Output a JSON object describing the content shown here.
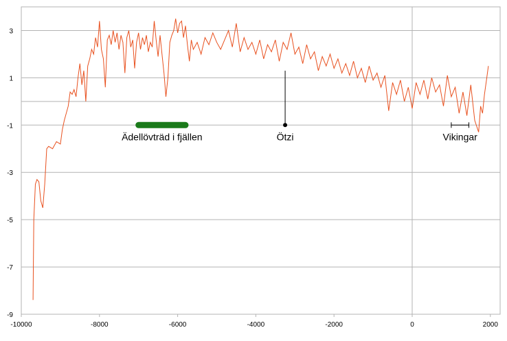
{
  "chart_data": {
    "type": "line",
    "x": [
      -9700,
      -9680,
      -9640,
      -9600,
      -9550,
      -9500,
      -9450,
      -9400,
      -9350,
      -9300,
      -9200,
      -9100,
      -9000,
      -8950,
      -8900,
      -8800,
      -8750,
      -8700,
      -8650,
      -8600,
      -8550,
      -8500,
      -8450,
      -8400,
      -8350,
      -8300,
      -8250,
      -8200,
      -8150,
      -8100,
      -8050,
      -8000,
      -7950,
      -7900,
      -7850,
      -7800,
      -7750,
      -7700,
      -7650,
      -7600,
      -7550,
      -7500,
      -7450,
      -7400,
      -7350,
      -7300,
      -7250,
      -7200,
      -7150,
      -7100,
      -7050,
      -7000,
      -6950,
      -6900,
      -6850,
      -6800,
      -6750,
      -6700,
      -6650,
      -6600,
      -6550,
      -6500,
      -6450,
      -6400,
      -6350,
      -6300,
      -6250,
      -6200,
      -6150,
      -6100,
      -6050,
      -6000,
      -5950,
      -5900,
      -5850,
      -5800,
      -5750,
      -5700,
      -5650,
      -5600,
      -5500,
      -5400,
      -5300,
      -5200,
      -5100,
      -5000,
      -4900,
      -4800,
      -4700,
      -4600,
      -4500,
      -4400,
      -4300,
      -4200,
      -4100,
      -4000,
      -3900,
      -3800,
      -3700,
      -3600,
      -3500,
      -3400,
      -3300,
      -3200,
      -3100,
      -3000,
      -2900,
      -2800,
      -2700,
      -2600,
      -2500,
      -2400,
      -2300,
      -2200,
      -2100,
      -2000,
      -1900,
      -1800,
      -1700,
      -1600,
      -1500,
      -1400,
      -1300,
      -1200,
      -1100,
      -1000,
      -900,
      -800,
      -700,
      -600,
      -500,
      -400,
      -300,
      -200,
      -100,
      0,
      100,
      200,
      300,
      400,
      500,
      600,
      700,
      800,
      900,
      1000,
      1100,
      1200,
      1300,
      1400,
      1500,
      1600,
      1700,
      1750,
      1800,
      1850,
      1900,
      1950
    ],
    "series": [
      {
        "color": "#e8501e",
        "values": [
          -8.4,
          -5.0,
          -3.5,
          -3.3,
          -3.4,
          -4.2,
          -4.5,
          -3.5,
          -2.0,
          -1.9,
          -2.0,
          -1.7,
          -1.8,
          -1.2,
          -0.8,
          -0.2,
          0.4,
          0.3,
          0.5,
          0.2,
          1.0,
          1.6,
          0.7,
          1.3,
          0.0,
          1.5,
          1.8,
          2.2,
          2.0,
          2.7,
          2.3,
          3.4,
          2.2,
          1.8,
          0.6,
          2.6,
          2.8,
          2.4,
          3.0,
          2.5,
          2.9,
          2.2,
          2.8,
          2.5,
          1.2,
          2.7,
          3.0,
          2.3,
          2.6,
          1.4,
          2.5,
          2.9,
          2.2,
          2.7,
          2.4,
          2.8,
          2.1,
          2.5,
          2.3,
          3.4,
          2.6,
          1.9,
          2.8,
          2.0,
          1.2,
          0.2,
          1.0,
          2.5,
          2.8,
          3.0,
          3.5,
          2.9,
          3.3,
          3.4,
          2.7,
          3.2,
          2.4,
          1.7,
          2.6,
          2.2,
          2.5,
          2.0,
          2.7,
          2.4,
          2.9,
          2.5,
          2.2,
          2.6,
          3.0,
          2.3,
          3.3,
          2.1,
          2.7,
          2.2,
          2.5,
          2.0,
          2.6,
          1.8,
          2.4,
          2.1,
          2.6,
          1.7,
          2.5,
          2.2,
          2.9,
          2.0,
          2.3,
          1.6,
          2.4,
          1.8,
          2.1,
          1.3,
          1.9,
          1.5,
          2.0,
          1.4,
          1.8,
          1.2,
          1.6,
          1.1,
          1.7,
          1.0,
          1.4,
          0.8,
          1.5,
          0.9,
          1.2,
          0.6,
          1.1,
          -0.4,
          0.8,
          0.3,
          0.9,
          0.0,
          0.6,
          -0.3,
          0.8,
          0.3,
          0.9,
          0.1,
          1.0,
          0.4,
          0.7,
          -0.2,
          1.1,
          0.2,
          0.6,
          -0.5,
          0.4,
          -0.6,
          0.7,
          -0.8,
          -1.3,
          -0.2,
          -0.5,
          0.3,
          0.9,
          1.5
        ]
      }
    ],
    "xlim": [
      -10000,
      2250
    ],
    "ylim": [
      -9,
      4
    ],
    "xticks": [
      -10000,
      -8000,
      -6000,
      -4000,
      -2000,
      0,
      2000
    ],
    "yticks": [
      -9,
      -7,
      -5,
      -3,
      -1,
      1,
      3
    ],
    "grid": true,
    "annotations": [
      {
        "text": "Ädellövträd i fjällen",
        "x": [
          -7000,
          -5800
        ],
        "y": -1,
        "color": "#1a7a1a"
      },
      {
        "text": "Ötzi",
        "x": [
          -3250
        ],
        "y": -1,
        "y_to": 1.3
      },
      {
        "text": "Vikingar",
        "x": [
          1000,
          1450
        ],
        "y": -1
      }
    ]
  }
}
